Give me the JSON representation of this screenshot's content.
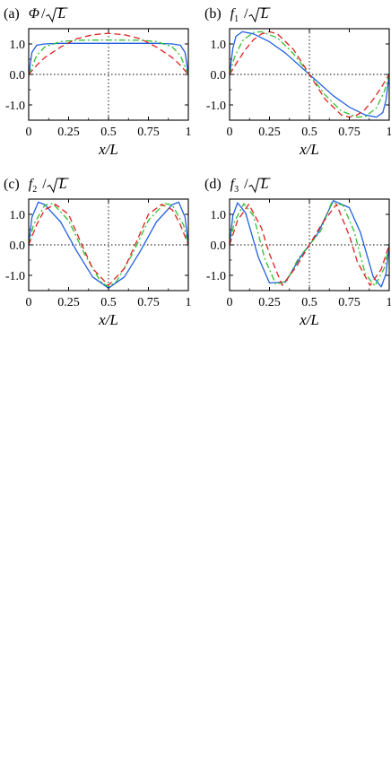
{
  "chart_data": [
    {
      "type": "line",
      "panel": "(a)",
      "title": {
        "var": "Φ",
        "sub": "",
        "tail": "L"
      },
      "xlabel": "x/L",
      "xlim": [
        0,
        1
      ],
      "ylim": [
        -1.5,
        1.5
      ],
      "xticks": [
        "0",
        "0.25",
        "0.5",
        "0.75",
        "1"
      ],
      "yticks": [
        "1.0",
        "0.0",
        "-1.0"
      ],
      "guides": {
        "vline_x": 0.5,
        "hline_y": 0
      },
      "series": [
        {
          "color": "#2060e0",
          "dash": "solid",
          "x": [
            0,
            0.02,
            0.05,
            0.1,
            0.2,
            0.3,
            0.5,
            0.7,
            0.8,
            0.9,
            0.95,
            0.98,
            1
          ],
          "y": [
            0,
            0.72,
            0.96,
            1.0,
            1.02,
            1.02,
            1.02,
            1.02,
            1.02,
            1.0,
            0.96,
            0.72,
            0
          ]
        },
        {
          "color": "#30c030",
          "dash": "dashdot",
          "x": [
            0,
            0.05,
            0.1,
            0.2,
            0.3,
            0.5,
            0.7,
            0.8,
            0.9,
            0.95,
            1
          ],
          "y": [
            0,
            0.62,
            0.9,
            1.08,
            1.12,
            1.13,
            1.12,
            1.08,
            0.9,
            0.62,
            0
          ]
        },
        {
          "color": "#e02020",
          "dash": "dash",
          "x": [
            0,
            0.05,
            0.1,
            0.2,
            0.3,
            0.4,
            0.5,
            0.6,
            0.7,
            0.8,
            0.9,
            0.95,
            1
          ],
          "y": [
            0,
            0.3,
            0.55,
            0.9,
            1.17,
            1.3,
            1.35,
            1.3,
            1.17,
            0.9,
            0.55,
            0.3,
            0
          ]
        }
      ]
    },
    {
      "type": "line",
      "panel": "(b)",
      "title": {
        "var": "f",
        "sub": "1",
        "tail": "L"
      },
      "xlabel": "x/L",
      "xlim": [
        0,
        1
      ],
      "ylim": [
        -1.5,
        1.5
      ],
      "xticks": [
        "0",
        "0.25",
        "0.5",
        "0.75",
        "1"
      ],
      "yticks": [
        "1.0",
        "0.0",
        "-1.0"
      ],
      "guides": {
        "vline_x": 0.5,
        "hline_y": 0
      },
      "series": [
        {
          "color": "#2060e0",
          "dash": "solid",
          "x": [
            0,
            0.02,
            0.04,
            0.08,
            0.15,
            0.25,
            0.35,
            0.5,
            0.65,
            0.75,
            0.85,
            0.92,
            0.96,
            0.98,
            1
          ],
          "y": [
            0,
            0.85,
            1.25,
            1.4,
            1.33,
            1.07,
            0.7,
            0,
            -0.7,
            -1.07,
            -1.33,
            -1.4,
            -1.25,
            -0.85,
            0
          ]
        },
        {
          "color": "#30c030",
          "dash": "dashdot",
          "x": [
            0,
            0.03,
            0.08,
            0.15,
            0.2,
            0.3,
            0.4,
            0.5,
            0.6,
            0.7,
            0.8,
            0.85,
            0.92,
            0.97,
            1
          ],
          "y": [
            0,
            0.55,
            1.1,
            1.38,
            1.4,
            1.2,
            0.68,
            0,
            -0.68,
            -1.2,
            -1.4,
            -1.38,
            -1.1,
            -0.55,
            0
          ]
        },
        {
          "color": "#e02020",
          "dash": "dash",
          "x": [
            0,
            0.05,
            0.1,
            0.15,
            0.2,
            0.25,
            0.3,
            0.4,
            0.5,
            0.6,
            0.7,
            0.75,
            0.8,
            0.85,
            0.9,
            0.95,
            1
          ],
          "y": [
            0,
            0.43,
            0.82,
            1.14,
            1.33,
            1.4,
            1.33,
            0.82,
            0,
            -0.82,
            -1.33,
            -1.4,
            -1.33,
            -1.14,
            -0.82,
            -0.43,
            0
          ]
        }
      ]
    },
    {
      "type": "line",
      "panel": "(c)",
      "title": {
        "var": "f",
        "sub": "2",
        "tail": "L"
      },
      "xlabel": "x/L",
      "xlim": [
        0,
        1
      ],
      "ylim": [
        -1.5,
        1.5
      ],
      "xticks": [
        "0",
        "0.25",
        "0.5",
        "0.75",
        "1"
      ],
      "yticks": [
        "1.0",
        "0.0",
        "-1.0"
      ],
      "guides": {
        "vline_x": 0.5,
        "hline_y": 0
      },
      "series": [
        {
          "color": "#2060e0",
          "dash": "solid",
          "x": [
            0,
            0.02,
            0.06,
            0.1,
            0.2,
            0.3,
            0.4,
            0.5,
            0.6,
            0.7,
            0.8,
            0.9,
            0.94,
            0.98,
            1
          ],
          "y": [
            0,
            0.9,
            1.4,
            1.32,
            0.75,
            -0.2,
            -1.05,
            -1.42,
            -1.05,
            -0.2,
            0.75,
            1.32,
            1.4,
            0.9,
            0
          ]
        },
        {
          "color": "#30c030",
          "dash": "dashdot",
          "x": [
            0,
            0.03,
            0.1,
            0.15,
            0.25,
            0.35,
            0.45,
            0.5,
            0.55,
            0.65,
            0.75,
            0.85,
            0.9,
            0.97,
            1
          ],
          "y": [
            0,
            0.65,
            1.3,
            1.36,
            0.8,
            -0.3,
            -1.2,
            -1.38,
            -1.2,
            -0.3,
            0.8,
            1.36,
            1.3,
            0.65,
            0
          ]
        },
        {
          "color": "#e02020",
          "dash": "dash",
          "x": [
            0,
            0.05,
            0.1,
            0.167,
            0.25,
            0.333,
            0.4,
            0.5,
            0.6,
            0.667,
            0.75,
            0.833,
            0.9,
            0.95,
            1
          ],
          "y": [
            0,
            0.66,
            1.15,
            1.33,
            1.0,
            0,
            -0.77,
            -1.33,
            -0.77,
            0,
            1.0,
            1.33,
            1.15,
            0.66,
            0
          ]
        }
      ]
    },
    {
      "type": "line",
      "panel": "(d)",
      "title": {
        "var": "f",
        "sub": "3",
        "tail": "L"
      },
      "xlabel": "x/L",
      "xlim": [
        0,
        1
      ],
      "ylim": [
        -1.5,
        1.5
      ],
      "xticks": [
        "0",
        "0.25",
        "0.5",
        "0.75",
        "1"
      ],
      "yticks": [
        "1.0",
        "0.0",
        "-1.0"
      ],
      "guides": {
        "vline_x": 0.5,
        "hline_y": 0
      },
      "series": [
        {
          "color": "#2060e0",
          "dash": "solid",
          "x": [
            0,
            0.02,
            0.05,
            0.1,
            0.18,
            0.25,
            0.35,
            0.45,
            0.5,
            0.55,
            0.65,
            0.75,
            0.82,
            0.9,
            0.95,
            0.98,
            1
          ],
          "y": [
            0,
            0.95,
            1.38,
            1.05,
            -0.4,
            -1.25,
            -1.22,
            -0.35,
            0,
            0.35,
            1.45,
            1.22,
            0.4,
            -1.05,
            -1.38,
            -0.95,
            0
          ]
        },
        {
          "color": "#30c030",
          "dash": "dashdot",
          "x": [
            0,
            0.03,
            0.09,
            0.15,
            0.22,
            0.29,
            0.36,
            0.43,
            0.5,
            0.57,
            0.64,
            0.71,
            0.78,
            0.85,
            0.91,
            0.97,
            1
          ],
          "y": [
            0,
            0.75,
            1.35,
            0.95,
            -0.45,
            -1.3,
            -1.18,
            -0.45,
            0,
            0.45,
            1.4,
            1.3,
            0.45,
            -0.95,
            -1.35,
            -0.75,
            0
          ]
        },
        {
          "color": "#e02020",
          "dash": "dash",
          "x": [
            0,
            0.05,
            0.12,
            0.2,
            0.25,
            0.33,
            0.42,
            0.5,
            0.58,
            0.67,
            0.75,
            0.8,
            0.88,
            0.95,
            1
          ],
          "y": [
            0,
            0.8,
            1.33,
            0.55,
            -0.3,
            -1.33,
            -0.7,
            0,
            0.7,
            1.33,
            0.3,
            -0.55,
            -1.33,
            -0.8,
            0
          ]
        }
      ]
    }
  ]
}
